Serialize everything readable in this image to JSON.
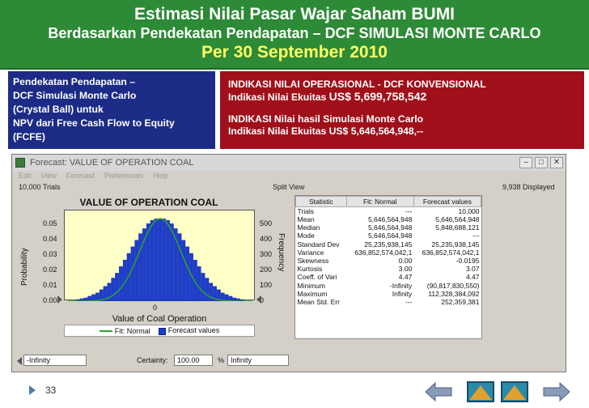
{
  "header": {
    "title": "Estimasi Nilai  Pasar Wajar  Saham BUMI",
    "subtitle": "Berdasarkan Pendekatan Pendapatan – DCF SIMULASI MONTE CARLO",
    "date": "Per 30 September 2010"
  },
  "left_box": {
    "lines": [
      "Pendekatan Pendapatan –",
      "DCF Simulasi Monte Carlo",
      "(Crystal Ball) untuk",
      "NPV dari Free Cash Flow to Equity",
      "(FCFE)"
    ]
  },
  "right_box": {
    "line1": "INDIKASI NILAI OPERASIONAL - DCF KONVENSIONAL",
    "line2_label": "Indikasi Nilai Ekuitas ",
    "line2_value": "US$ 5,699,758,542",
    "line3": "INDIKASI Nilai  hasil Simulasi Monte Carlo",
    "line4": "Indikasi Nilai Ekuitas US$  5,646,564,948,--"
  },
  "window": {
    "title": "Forecast: VALUE OF OPERATION COAL",
    "menu": [
      "Edit",
      "View",
      "Forecast",
      "Preferences",
      "Help"
    ],
    "trials": "10,000 Trials",
    "view": "Split View",
    "displayed": "9,938 Displayed",
    "controls": {
      "left_value": "-Infinity",
      "certainty_label": "Certainty:",
      "certainty_value": "100.00",
      "certainty_unit": "%",
      "right_value": "Infinity"
    }
  },
  "chart_data": {
    "type": "bar",
    "title": "VALUE OF OPERATION COAL",
    "xlabel": "Value of Coal Operation",
    "ylabel_left": "Probability",
    "ylabel_right": "Frequency",
    "x_ticks": [
      "0"
    ],
    "y_left_ticks": [
      "0.05",
      "0.04",
      "0.03",
      "0.02",
      "0.01",
      "0.00"
    ],
    "y_right_ticks": [
      "500",
      "400",
      "300",
      "200",
      "100",
      "0"
    ],
    "ylim": [
      0,
      0.055
    ],
    "series": [
      {
        "name": "Forecast values",
        "values": [
          0.001,
          0.0015,
          0.002,
          0.003,
          0.004,
          0.005,
          0.007,
          0.009,
          0.011,
          0.014,
          0.017,
          0.021,
          0.025,
          0.029,
          0.033,
          0.037,
          0.041,
          0.044,
          0.047,
          0.049,
          0.05,
          0.05,
          0.05,
          0.049,
          0.047,
          0.044,
          0.041,
          0.037,
          0.033,
          0.029,
          0.025,
          0.021,
          0.017,
          0.014,
          0.011,
          0.009,
          0.007,
          0.005,
          0.004,
          0.003,
          0.002,
          0.0015,
          0.001
        ]
      },
      {
        "name": "Fit: Normal"
      }
    ],
    "legend": [
      "Fit: Normal",
      "Forecast values"
    ],
    "colors": {
      "bars": "#1c3dd0",
      "fit": "#2ea32e",
      "plot_bg": "#ffffc8"
    }
  },
  "stats": {
    "headers": [
      "Statistic",
      "Fit: Normal",
      "Forecast values"
    ],
    "rows": [
      [
        "Trials",
        "---",
        "10,000"
      ],
      [
        "Mean",
        "5,646,564,948",
        "5,646,564,948"
      ],
      [
        "Median",
        "5,646,564,948",
        "5,848,688,121"
      ],
      [
        "Mode",
        "5,646,564,948",
        "---"
      ],
      [
        "Standard Dev",
        "25,235,938,145",
        "25,235,938,145"
      ],
      [
        "Variance",
        "636,852,574,042,1",
        "636,852,574,042,1"
      ],
      [
        "Skewness",
        "0.00",
        "-0.0195"
      ],
      [
        "Kurtosis",
        "3.00",
        "3.07"
      ],
      [
        "Coeff. of Vari",
        "4.47",
        "4.47"
      ],
      [
        "Minimum",
        "-Infinity",
        "(90,817,830,550)"
      ],
      [
        "Maximum",
        "Infinity",
        "112,328,384,092"
      ],
      [
        "Mean Std. Err",
        "---",
        "252,359,381"
      ]
    ]
  },
  "footer": {
    "slide_number": "33"
  }
}
